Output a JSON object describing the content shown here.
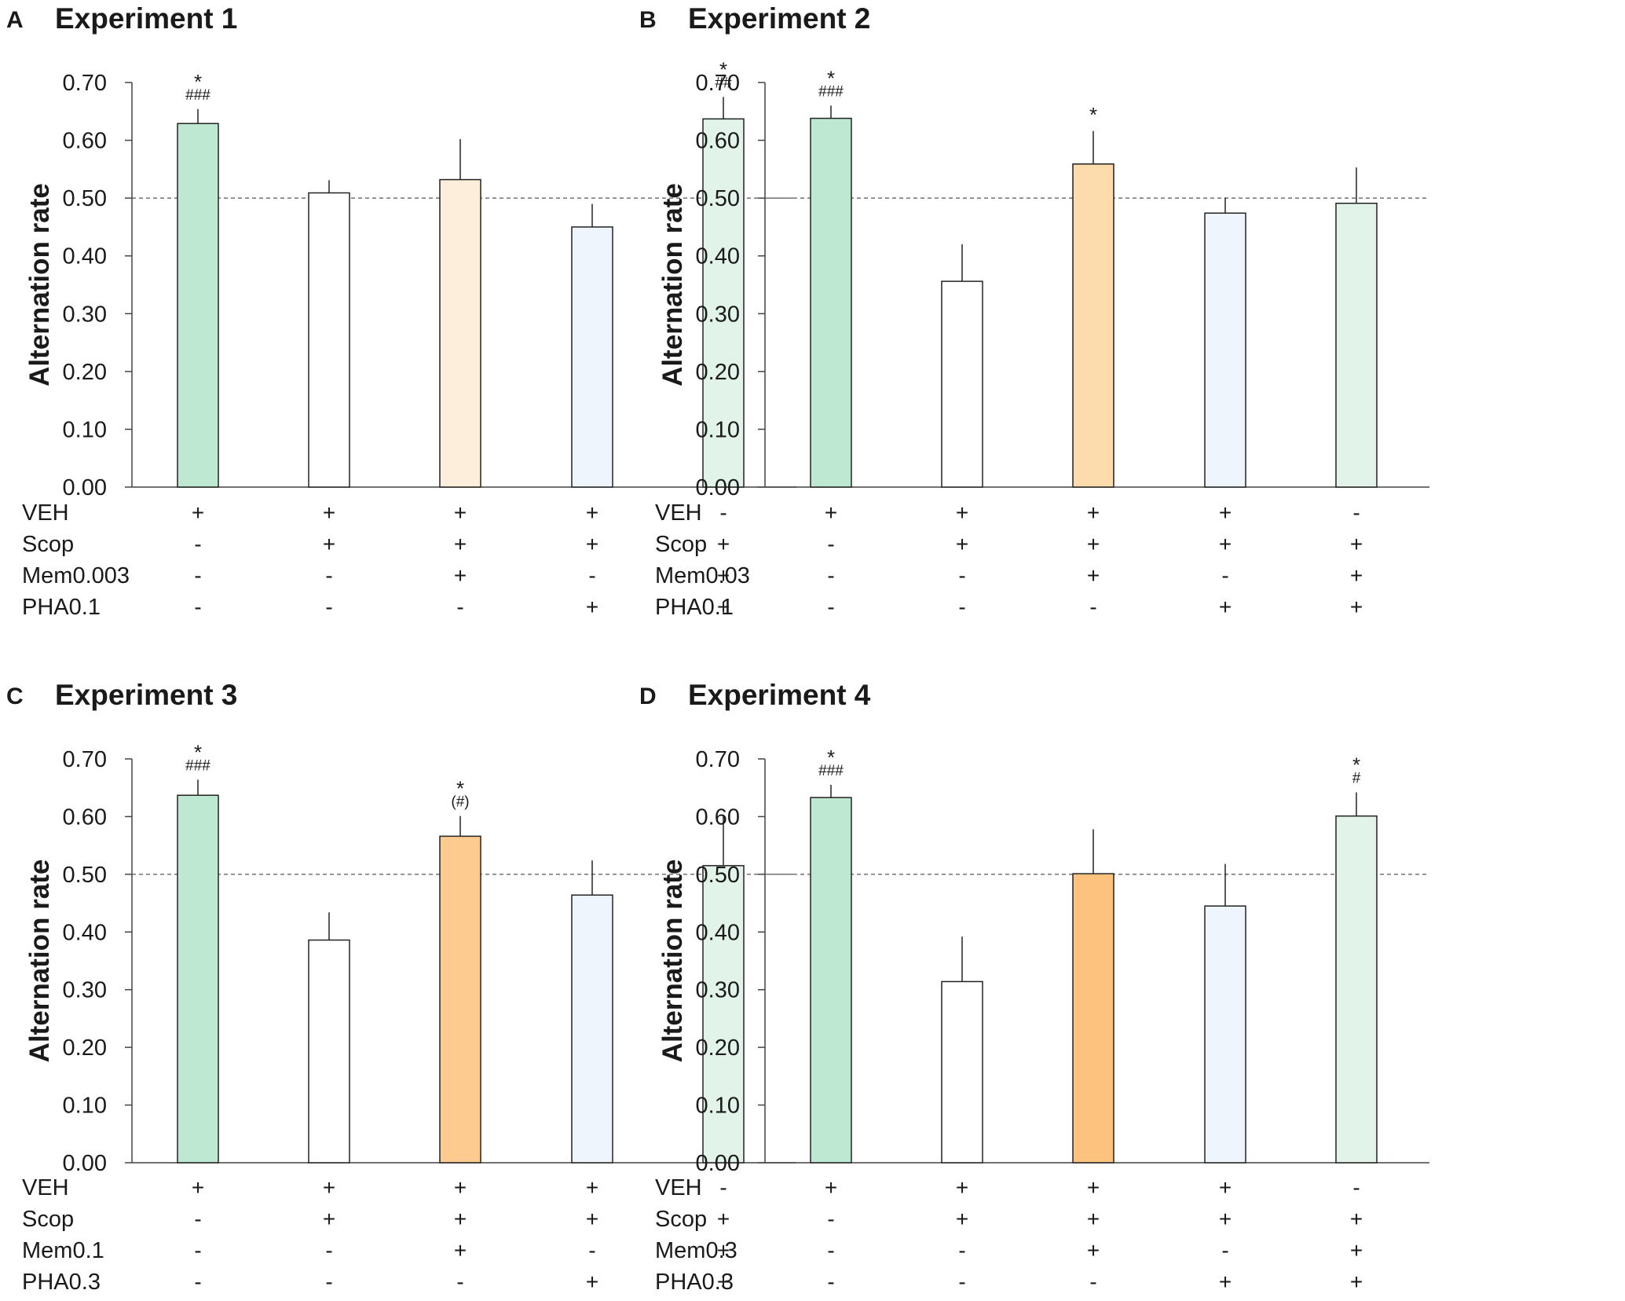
{
  "colors": {
    "veh": "#bfe8d3",
    "scop": "#ffffff",
    "mem_light": "#fdeedc",
    "mem_mid": "#fcdcad",
    "mem_strong": "#fdcb8f",
    "mem_strongest": "#fdc27e",
    "pha": "#eef5fd",
    "combo": "#e2f3ea"
  },
  "chart_data": [
    {
      "panel": "A",
      "title": "Experiment 1",
      "type": "bar",
      "ylabel": "Alternation rate",
      "ylim": [
        0,
        0.7
      ],
      "yticks": [
        "0.00",
        "0.10",
        "0.20",
        "0.30",
        "0.40",
        "0.50",
        "0.60",
        "0.70"
      ],
      "reference_line": 0.5,
      "values": [
        0.629,
        0.509,
        0.532,
        0.45,
        0.637
      ],
      "errors": [
        0.025,
        0.022,
        0.07,
        0.04,
        0.038
      ],
      "bar_colors": [
        "veh",
        "scop",
        "mem_light",
        "pha",
        "combo"
      ],
      "significance": [
        {
          "star": "*",
          "hash": "###"
        },
        {
          "star": "",
          "hash": ""
        },
        {
          "star": "",
          "hash": ""
        },
        {
          "star": "",
          "hash": ""
        },
        {
          "star": "*",
          "hash": "##"
        }
      ],
      "treatment_rows": [
        {
          "label": "VEH",
          "signs": [
            "+",
            "+",
            "+",
            "+",
            "-"
          ]
        },
        {
          "label": "Scop",
          "signs": [
            "-",
            "+",
            "+",
            "+",
            "+"
          ]
        },
        {
          "label": "Mem0.003",
          "signs": [
            "-",
            "-",
            "+",
            "-",
            "+"
          ]
        },
        {
          "label": "PHA0.1",
          "signs": [
            "-",
            "-",
            "-",
            "+",
            "+"
          ]
        }
      ]
    },
    {
      "panel": "B",
      "title": "Experiment 2",
      "type": "bar",
      "ylabel": "Alternation rate",
      "ylim": [
        0,
        0.7
      ],
      "yticks": [
        "0.00",
        "0.10",
        "0.20",
        "0.30",
        "0.40",
        "0.50",
        "0.60",
        "0.70"
      ],
      "reference_line": 0.5,
      "values": [
        0.638,
        0.356,
        0.559,
        0.474,
        0.491
      ],
      "errors": [
        0.022,
        0.064,
        0.057,
        0.027,
        0.062
      ],
      "bar_colors": [
        "veh",
        "scop",
        "mem_mid",
        "pha",
        "combo"
      ],
      "significance": [
        {
          "star": "*",
          "hash": "###"
        },
        {
          "star": "",
          "hash": ""
        },
        {
          "star": "*",
          "hash": ""
        },
        {
          "star": "",
          "hash": ""
        },
        {
          "star": "",
          "hash": ""
        }
      ],
      "treatment_rows": [
        {
          "label": "VEH",
          "signs": [
            "+",
            "+",
            "+",
            "+",
            "-"
          ]
        },
        {
          "label": "Scop",
          "signs": [
            "-",
            "+",
            "+",
            "+",
            "+"
          ]
        },
        {
          "label": "Mem0.03",
          "signs": [
            "-",
            "-",
            "+",
            "-",
            "+"
          ]
        },
        {
          "label": "PHA0.1",
          "signs": [
            "-",
            "-",
            "-",
            "+",
            "+"
          ]
        }
      ]
    },
    {
      "panel": "C",
      "title": "Experiment 3",
      "type": "bar",
      "ylabel": "Alternation rate",
      "ylim": [
        0,
        0.7
      ],
      "yticks": [
        "0.00",
        "0.10",
        "0.20",
        "0.30",
        "0.40",
        "0.50",
        "0.60",
        "0.70"
      ],
      "reference_line": 0.5,
      "values": [
        0.637,
        0.386,
        0.566,
        0.464,
        0.515
      ],
      "errors": [
        0.027,
        0.048,
        0.035,
        0.06,
        0.085
      ],
      "bar_colors": [
        "veh",
        "scop",
        "mem_strong",
        "pha",
        "combo"
      ],
      "significance": [
        {
          "star": "*",
          "hash": "###"
        },
        {
          "star": "",
          "hash": ""
        },
        {
          "star": "*",
          "hash": "(#)"
        },
        {
          "star": "",
          "hash": ""
        },
        {
          "star": "",
          "hash": ""
        }
      ],
      "treatment_rows": [
        {
          "label": "VEH",
          "signs": [
            "+",
            "+",
            "+",
            "+",
            "-"
          ]
        },
        {
          "label": "Scop",
          "signs": [
            "-",
            "+",
            "+",
            "+",
            "+"
          ]
        },
        {
          "label": "Mem0.1",
          "signs": [
            "-",
            "-",
            "+",
            "-",
            "+"
          ]
        },
        {
          "label": "PHA0.3",
          "signs": [
            "-",
            "-",
            "-",
            "+",
            "+"
          ]
        }
      ]
    },
    {
      "panel": "D",
      "title": "Experiment 4",
      "type": "bar",
      "ylabel": "Alternation rate",
      "ylim": [
        0,
        0.7
      ],
      "yticks": [
        "0.00",
        "0.10",
        "0.20",
        "0.30",
        "0.40",
        "0.50",
        "0.60",
        "0.70"
      ],
      "reference_line": 0.5,
      "values": [
        0.633,
        0.314,
        0.501,
        0.445,
        0.601
      ],
      "errors": [
        0.022,
        0.078,
        0.077,
        0.073,
        0.041
      ],
      "bar_colors": [
        "veh",
        "scop",
        "mem_strongest",
        "pha",
        "combo"
      ],
      "significance": [
        {
          "star": "*",
          "hash": "###"
        },
        {
          "star": "",
          "hash": ""
        },
        {
          "star": "",
          "hash": ""
        },
        {
          "star": "",
          "hash": ""
        },
        {
          "star": "*",
          "hash": "#"
        }
      ],
      "treatment_rows": [
        {
          "label": "VEH",
          "signs": [
            "+",
            "+",
            "+",
            "+",
            "-"
          ]
        },
        {
          "label": "Scop",
          "signs": [
            "-",
            "+",
            "+",
            "+",
            "+"
          ]
        },
        {
          "label": "Mem0.3",
          "signs": [
            "-",
            "-",
            "+",
            "-",
            "+"
          ]
        },
        {
          "label": "PHA0.3",
          "signs": [
            "-",
            "-",
            "-",
            "+",
            "+"
          ]
        }
      ]
    }
  ]
}
